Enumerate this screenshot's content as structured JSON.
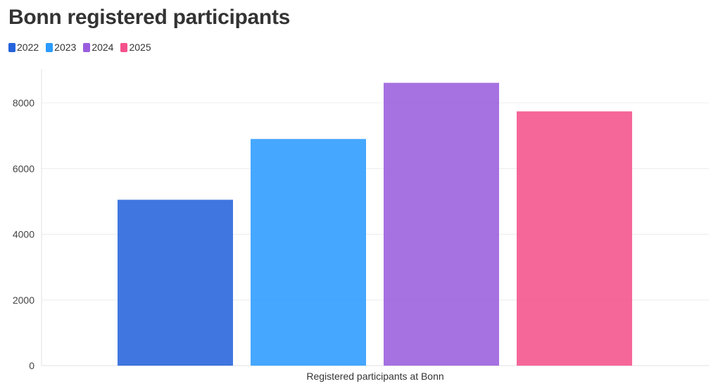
{
  "chart_data": {
    "type": "bar",
    "title": "Bonn registered participants",
    "categories": [
      "Registered participants at Bonn"
    ],
    "xlabel": "Registered participants at Bonn",
    "ylabel": "",
    "ylim": [
      0,
      8600
    ],
    "yticks": [
      0,
      2000,
      4000,
      6000,
      8000
    ],
    "grid": true,
    "legend_position": "top-left",
    "series": [
      {
        "name": "2022",
        "values": [
          5050
        ],
        "color": "#2563dc"
      },
      {
        "name": "2023",
        "values": [
          6900
        ],
        "color": "#2b9bff"
      },
      {
        "name": "2024",
        "values": [
          8610
        ],
        "color": "#9a5ddd"
      },
      {
        "name": "2025",
        "values": [
          7740
        ],
        "color": "#f4518b"
      }
    ]
  }
}
